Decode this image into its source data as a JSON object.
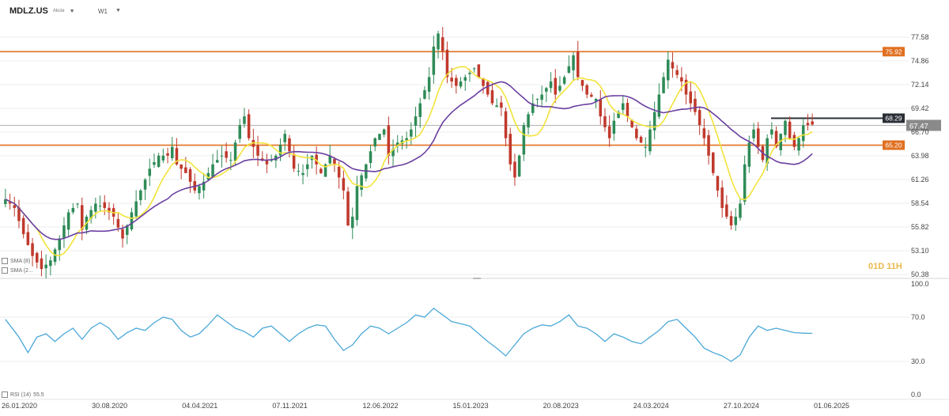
{
  "header": {
    "symbol": "MDLZ.US",
    "subtitle": "Akcie",
    "timeframe": "W1"
  },
  "countdown": "01D 11H",
  "legend": {
    "rsi_label": "RSI (14)",
    "rsi_value": "55.5",
    "sma1": "SMA (8)",
    "sma2": "SMA (2..."
  },
  "colors": {
    "candle_up": "#2e8b57",
    "candle_down": "#c0392b",
    "sma_fast": "#f2e33a",
    "sma_slow": "#6a3fa0",
    "level": "#e07020",
    "dark_level": "#2b2f36",
    "rsi": "#4aa8d8"
  },
  "chart_data": [
    {
      "type": "candlestick",
      "symbol": "MDLZ.US",
      "timeframe": "W1",
      "x_tick_labels": [
        "26.01.2020",
        "30.08.2020",
        "04.04.2021",
        "07.11.2021",
        "12.06.2022",
        "15.01.2023",
        "20.08.2023",
        "24.03.2024",
        "27.10.2024",
        "01.06.2025"
      ],
      "y_tick_labels": [
        "77.58",
        "74.86",
        "72.14",
        "69.42",
        "66.70",
        "63.98",
        "61.26",
        "58.54",
        "55.82",
        "53.10",
        "50.38"
      ],
      "ylim": [
        50.38,
        78.5
      ],
      "horizontal_levels": [
        {
          "value": 75.92,
          "label": "75.92",
          "color": "#e07020"
        },
        {
          "value": 65.2,
          "label": "65.20",
          "color": "#e07020"
        },
        {
          "value": 68.29,
          "label": "68.29",
          "color": "#2b2f36"
        }
      ],
      "last_price": {
        "value": 67.47,
        "label": "67.47"
      },
      "price_path": [
        [
          0,
          59.0
        ],
        [
          2,
          58.0
        ],
        [
          4,
          55.0
        ],
        [
          6,
          52.5
        ],
        [
          8,
          51.0
        ],
        [
          10,
          52.0
        ],
        [
          12,
          54.5
        ],
        [
          14,
          57.5
        ],
        [
          16,
          58.5
        ],
        [
          17,
          55.5
        ],
        [
          18,
          57.0
        ],
        [
          20,
          58.5
        ],
        [
          22,
          58.0
        ],
        [
          24,
          57.0
        ],
        [
          26,
          54.5
        ],
        [
          28,
          57.5
        ],
        [
          30,
          60.0
        ],
        [
          32,
          62.5
        ],
        [
          34,
          64.0
        ],
        [
          36,
          64.0
        ],
        [
          37,
          65.0
        ],
        [
          38,
          63.0
        ],
        [
          40,
          62.0
        ],
        [
          42,
          60.0
        ],
        [
          44,
          61.0
        ],
        [
          46,
          63.0
        ],
        [
          48,
          64.0
        ],
        [
          50,
          63.5
        ],
        [
          52,
          67.5
        ],
        [
          53,
          68.5
        ],
        [
          54,
          66.0
        ],
        [
          56,
          64.0
        ],
        [
          58,
          63.0
        ],
        [
          60,
          64.0
        ],
        [
          62,
          66.5
        ],
        [
          64,
          62.5
        ],
        [
          66,
          62.0
        ],
        [
          68,
          64.0
        ],
        [
          70,
          62.0
        ],
        [
          72,
          64.0
        ],
        [
          73,
          63.0
        ],
        [
          75,
          60.0
        ],
        [
          76,
          56.0
        ],
        [
          77,
          57.0
        ],
        [
          78,
          60.5
        ],
        [
          80,
          63.0
        ],
        [
          82,
          66.0
        ],
        [
          84,
          67.0
        ],
        [
          85,
          64.0
        ],
        [
          87,
          65.5
        ],
        [
          89,
          66.0
        ],
        [
          90,
          67.0
        ],
        [
          92,
          70.0
        ],
        [
          94,
          73.0
        ],
        [
          95,
          76.5
        ],
        [
          96,
          78.0
        ],
        [
          97,
          76.0
        ],
        [
          98,
          73.0
        ],
        [
          100,
          72.0
        ],
        [
          102,
          73.0
        ],
        [
          104,
          74.0
        ],
        [
          106,
          72.0
        ],
        [
          108,
          70.0
        ],
        [
          110,
          69.5
        ],
        [
          111,
          66.0
        ],
        [
          112,
          63.0
        ],
        [
          113,
          61.5
        ],
        [
          114,
          64.0
        ],
        [
          115,
          67.5
        ],
        [
          117,
          70.0
        ],
        [
          119,
          71.0
        ],
        [
          121,
          72.5
        ],
        [
          122,
          71.0
        ],
        [
          124,
          73.0
        ],
        [
          126,
          75.5
        ],
        [
          127,
          73.0
        ],
        [
          129,
          71.0
        ],
        [
          131,
          70.5
        ],
        [
          132,
          68.5
        ],
        [
          134,
          66.0
        ],
        [
          135,
          68.0
        ],
        [
          137,
          70.0
        ],
        [
          138,
          68.5
        ],
        [
          140,
          66.0
        ],
        [
          142,
          65.0
        ],
        [
          143,
          67.0
        ],
        [
          145,
          71.0
        ],
        [
          146,
          73.0
        ],
        [
          147,
          75.0
        ],
        [
          148,
          74.0
        ],
        [
          150,
          72.5
        ],
        [
          151,
          71.0
        ],
        [
          153,
          69.0
        ],
        [
          155,
          66.0
        ],
        [
          156,
          64.0
        ],
        [
          157,
          62.0
        ],
        [
          158,
          60.0
        ],
        [
          159,
          58.0
        ],
        [
          160,
          57.0
        ],
        [
          161,
          56.0
        ],
        [
          162,
          57.0
        ],
        [
          163,
          58.5
        ],
        [
          164,
          63.0
        ],
        [
          165,
          65.5
        ],
        [
          166,
          67.0
        ],
        [
          167,
          65.0
        ],
        [
          168,
          63.5
        ],
        [
          169,
          66.0
        ],
        [
          170,
          67.0
        ],
        [
          171,
          65.0
        ],
        [
          172,
          66.5
        ],
        [
          173,
          68.0
        ],
        [
          174,
          66.0
        ],
        [
          175,
          65.0
        ],
        [
          176,
          66.0
        ],
        [
          177,
          67.47
        ]
      ]
    },
    {
      "type": "line",
      "name": "RSI (14)",
      "y_tick_labels": [
        "100.0",
        "70.0",
        "30.0",
        "0.0"
      ],
      "ylim": [
        0,
        100
      ],
      "last_value": 55.5,
      "rsi_path": [
        [
          0,
          68
        ],
        [
          3,
          52
        ],
        [
          5,
          38
        ],
        [
          7,
          52
        ],
        [
          9,
          55
        ],
        [
          11,
          48
        ],
        [
          13,
          55
        ],
        [
          15,
          60
        ],
        [
          17,
          50
        ],
        [
          19,
          60
        ],
        [
          21,
          65
        ],
        [
          23,
          60
        ],
        [
          25,
          50
        ],
        [
          27,
          56
        ],
        [
          29,
          60
        ],
        [
          31,
          58
        ],
        [
          33,
          65
        ],
        [
          35,
          70
        ],
        [
          37,
          68
        ],
        [
          39,
          58
        ],
        [
          41,
          52
        ],
        [
          43,
          55
        ],
        [
          45,
          63
        ],
        [
          47,
          72
        ],
        [
          49,
          66
        ],
        [
          51,
          60
        ],
        [
          53,
          57
        ],
        [
          55,
          52
        ],
        [
          57,
          60
        ],
        [
          59,
          62
        ],
        [
          61,
          55
        ],
        [
          63,
          48
        ],
        [
          65,
          55
        ],
        [
          67,
          60
        ],
        [
          69,
          63
        ],
        [
          71,
          62
        ],
        [
          73,
          50
        ],
        [
          75,
          40
        ],
        [
          77,
          45
        ],
        [
          79,
          55
        ],
        [
          81,
          62
        ],
        [
          83,
          60
        ],
        [
          85,
          55
        ],
        [
          87,
          60
        ],
        [
          89,
          65
        ],
        [
          91,
          72
        ],
        [
          93,
          70
        ],
        [
          95,
          78
        ],
        [
          97,
          72
        ],
        [
          99,
          66
        ],
        [
          101,
          64
        ],
        [
          103,
          62
        ],
        [
          105,
          55
        ],
        [
          107,
          48
        ],
        [
          109,
          42
        ],
        [
          111,
          35
        ],
        [
          113,
          45
        ],
        [
          115,
          55
        ],
        [
          117,
          60
        ],
        [
          119,
          63
        ],
        [
          121,
          62
        ],
        [
          123,
          66
        ],
        [
          125,
          72
        ],
        [
          127,
          62
        ],
        [
          129,
          60
        ],
        [
          131,
          55
        ],
        [
          133,
          48
        ],
        [
          135,
          55
        ],
        [
          137,
          52
        ],
        [
          139,
          48
        ],
        [
          141,
          46
        ],
        [
          143,
          52
        ],
        [
          145,
          58
        ],
        [
          147,
          66
        ],
        [
          149,
          68
        ],
        [
          151,
          60
        ],
        [
          153,
          52
        ],
        [
          155,
          42
        ],
        [
          157,
          38
        ],
        [
          159,
          35
        ],
        [
          161,
          30
        ],
        [
          163,
          36
        ],
        [
          165,
          52
        ],
        [
          167,
          62
        ],
        [
          169,
          58
        ],
        [
          171,
          60
        ],
        [
          173,
          58
        ],
        [
          175,
          56
        ],
        [
          177,
          55.5
        ]
      ]
    }
  ]
}
